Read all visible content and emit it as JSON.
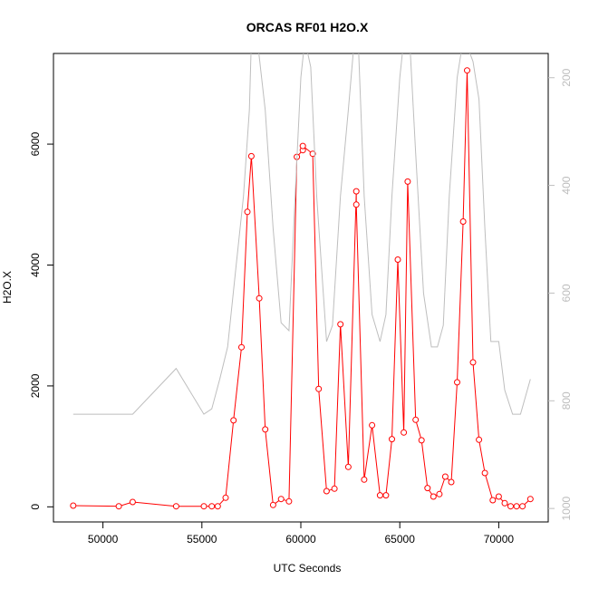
{
  "chart_data": {
    "type": "line",
    "title": "ORCAS RF01 H2O.X",
    "xlabel": "UTC Seconds",
    "ylabel": "H2O.X",
    "xlim": [
      47500,
      72500
    ],
    "ylim": [
      -250,
      7500
    ],
    "y2lim": [
      1025,
      155
    ],
    "x_ticks": [
      50000,
      55000,
      60000,
      65000,
      70000
    ],
    "y_ticks": [
      0,
      2000,
      4000,
      6000
    ],
    "y2_ticks": [
      200,
      400,
      600,
      800,
      1000
    ],
    "colors": {
      "primary": "#ff0000",
      "secondary": "#bebebe"
    },
    "series": [
      {
        "axis": "left",
        "x": [
          48500,
          50800,
          51500,
          53700,
          55100,
          55500,
          55800,
          56200,
          56600,
          57000,
          57300,
          57500,
          57900,
          58200,
          58600,
          59000,
          59400,
          59800,
          60100,
          60100,
          60600,
          60900,
          61300,
          61700,
          62000,
          62400,
          62800,
          62800,
          63200,
          63600,
          64000,
          64300,
          64600,
          64900,
          65200,
          65400,
          65800,
          66100,
          66400,
          66700,
          67000,
          67300,
          67600,
          67900,
          68200,
          68400,
          68700,
          69000,
          69300,
          69700,
          70000,
          70300,
          70600,
          70900,
          71200,
          71600
        ],
        "y": [
          20,
          10,
          80,
          10,
          10,
          10,
          10,
          150,
          1430,
          2640,
          4880,
          5800,
          3450,
          1280,
          30,
          130,
          90,
          5790,
          5900,
          5970,
          5840,
          1950,
          260,
          300,
          3020,
          660,
          5220,
          5000,
          450,
          1350,
          190,
          190,
          1120,
          4090,
          1230,
          5380,
          1440,
          1100,
          310,
          170,
          210,
          500,
          410,
          2060,
          4720,
          7220,
          2390,
          1110,
          560,
          110,
          170,
          60,
          10,
          10,
          10,
          130
        ]
      },
      {
        "axis": "right",
        "x": [
          48500,
          50800,
          51500,
          53700,
          55100,
          55500,
          55900,
          56300,
          56700,
          57100,
          57400,
          57500,
          57800,
          58200,
          58600,
          59000,
          59400,
          59700,
          60000,
          60200,
          60500,
          60800,
          61300,
          61600,
          62000,
          62400,
          62700,
          62900,
          63200,
          63600,
          64000,
          64300,
          64600,
          65000,
          65200,
          65500,
          65800,
          66200,
          66600,
          66900,
          67200,
          67500,
          67900,
          68200,
          68500,
          68700,
          69000,
          69300,
          69600,
          70000,
          70300,
          70700,
          71100,
          71600
        ],
        "y": [
          825,
          825,
          825,
          740,
          825,
          815,
          760,
          700,
          560,
          420,
          260,
          130,
          130,
          260,
          480,
          655,
          670,
          430,
          200,
          130,
          180,
          420,
          690,
          660,
          420,
          260,
          130,
          130,
          420,
          640,
          690,
          640,
          420,
          200,
          130,
          130,
          340,
          600,
          700,
          700,
          660,
          420,
          200,
          130,
          150,
          170,
          240,
          480,
          690,
          690,
          780,
          825,
          825,
          760
        ]
      }
    ]
  }
}
